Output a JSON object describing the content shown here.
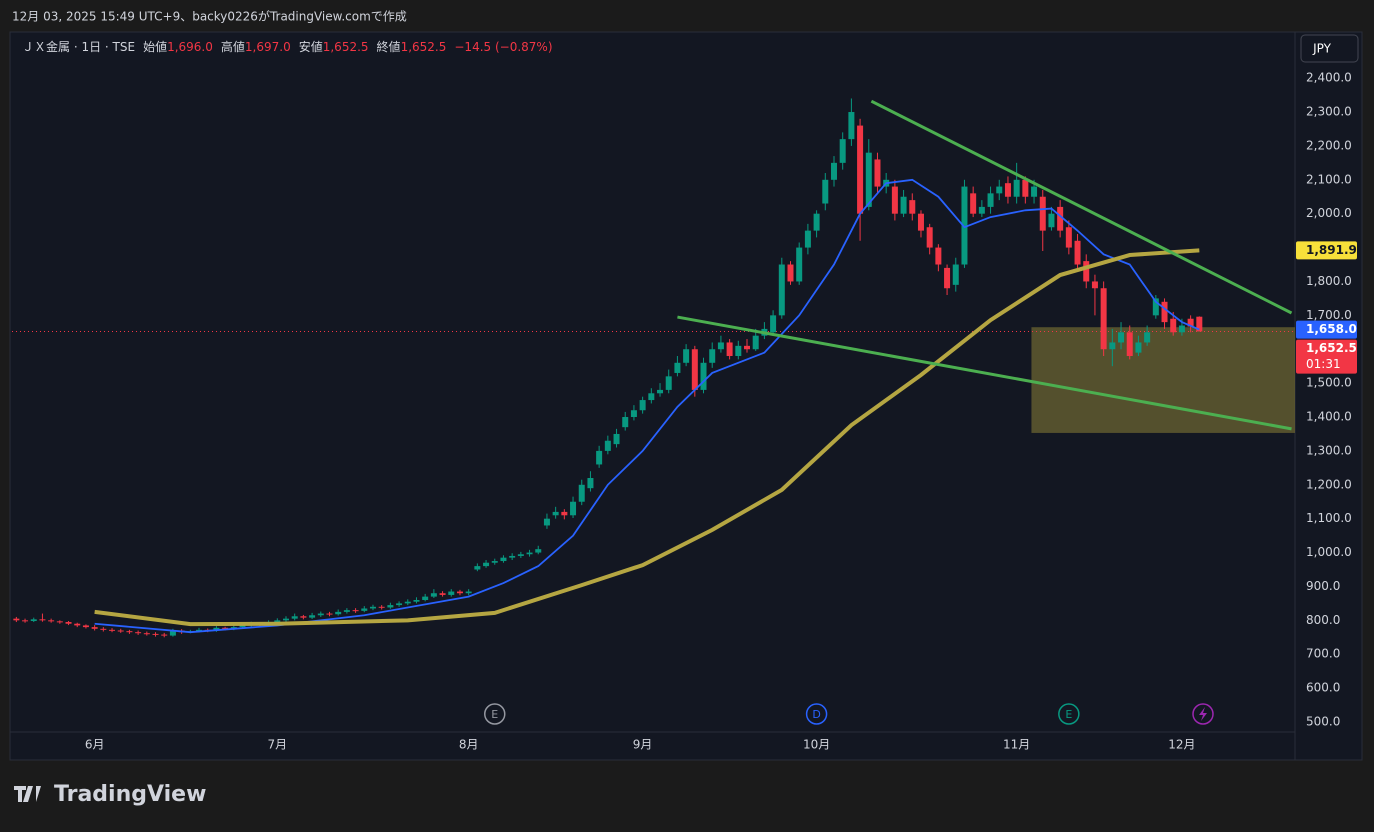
{
  "header": "12月 03, 2025 15:49 UTC+9、backy0226がTradingView.comで作成",
  "brand": "TradingView",
  "chart_data": {
    "type": "candlestick",
    "title": "ＪＸ金属 · 1日 · TSE",
    "legend_fields": [
      {
        "name": "始値",
        "value": 1696,
        "label": "1,696.0"
      },
      {
        "name": "高値",
        "value": 1697,
        "label": "1,697.0"
      },
      {
        "name": "安値",
        "value": 1652.5,
        "label": "1,652.5"
      },
      {
        "name": "終値",
        "value": 1652.5,
        "label": "1,652.5"
      }
    ],
    "change": {
      "value": -14.5,
      "label": "−14.5 (−0.87%)"
    },
    "currency": "JPY",
    "countdown": "01:31",
    "up_color": "#089981",
    "down_color": "#f23645",
    "open": [
      805,
      800,
      798,
      803,
      800,
      797,
      795,
      790,
      785,
      780,
      775,
      772,
      770,
      768,
      765,
      762,
      760,
      758,
      755,
      770,
      765,
      768,
      772,
      770,
      778,
      775,
      780,
      785,
      790,
      788,
      795,
      800,
      805,
      812,
      808,
      815,
      820,
      818,
      825,
      830,
      828,
      835,
      840,
      838,
      845,
      850,
      855,
      860,
      870,
      880,
      875,
      885,
      880,
      950,
      960,
      970,
      975,
      985,
      990,
      995,
      1000,
      1080,
      1110,
      1120,
      1110,
      1150,
      1190,
      1260,
      1300,
      1320,
      1370,
      1400,
      1420,
      1450,
      1470,
      1480,
      1530,
      1560,
      1600,
      1480,
      1560,
      1600,
      1620,
      1580,
      1610,
      1600,
      1640,
      1650,
      1700,
      1850,
      1800,
      1900,
      1950,
      2030,
      2100,
      2150,
      2220,
      2260,
      2020,
      2160,
      2080,
      2080,
      2000,
      2040,
      2000,
      1960,
      1900,
      1840,
      1790,
      1850,
      2060,
      2000,
      2020,
      2060,
      2090,
      2050,
      2100,
      2050,
      2050,
      1960,
      2020,
      1960,
      1920,
      1860,
      1800,
      1780,
      1600,
      1620,
      1650,
      1590,
      1620,
      1700,
      1740,
      1690,
      1650,
      1690,
      1696
    ],
    "high": [
      810,
      805,
      808,
      820,
      805,
      800,
      798,
      793,
      788,
      786,
      780,
      777,
      775,
      772,
      770,
      767,
      765,
      763,
      775,
      774,
      772,
      778,
      776,
      783,
      781,
      786,
      790,
      796,
      794,
      800,
      806,
      812,
      820,
      816,
      822,
      826,
      825,
      832,
      836,
      836,
      842,
      846,
      845,
      852,
      856,
      862,
      868,
      878,
      892,
      886,
      892,
      890,
      892,
      968,
      978,
      982,
      992,
      998,
      1002,
      1008,
      1020,
      1115,
      1135,
      1128,
      1165,
      1215,
      1240,
      1315,
      1345,
      1365,
      1415,
      1435,
      1460,
      1485,
      1500,
      1540,
      1580,
      1615,
      1610,
      1575,
      1620,
      1640,
      1630,
      1625,
      1630,
      1660,
      1680,
      1715,
      1870,
      1860,
      1915,
      1970,
      2010,
      2120,
      2170,
      2240,
      2340,
      2280,
      2220,
      2180,
      2120,
      2100,
      2070,
      2060,
      2010,
      1970,
      1910,
      1850,
      1870,
      2100,
      2080,
      2040,
      2080,
      2100,
      2110,
      2150,
      2110,
      2100,
      2070,
      2020,
      2040,
      1980,
      1940,
      1880,
      1820,
      1800,
      1660,
      1680,
      1670,
      1640,
      1670,
      1760,
      1750,
      1710,
      1690,
      1700,
      1697
    ],
    "low": [
      795,
      793,
      795,
      796,
      793,
      790,
      786,
      780,
      776,
      770,
      767,
      765,
      763,
      760,
      757,
      755,
      752,
      750,
      752,
      760,
      762,
      764,
      765,
      766,
      770,
      771,
      776,
      780,
      783,
      784,
      790,
      795,
      800,
      803,
      804,
      810,
      812,
      814,
      820,
      822,
      824,
      830,
      832,
      834,
      840,
      845,
      850,
      856,
      866,
      870,
      870,
      874,
      874,
      945,
      955,
      964,
      970,
      978,
      984,
      988,
      995,
      1070,
      1100,
      1098,
      1102,
      1140,
      1180,
      1250,
      1290,
      1310,
      1360,
      1390,
      1410,
      1440,
      1460,
      1470,
      1520,
      1550,
      1460,
      1470,
      1545,
      1590,
      1570,
      1570,
      1590,
      1595,
      1630,
      1640,
      1690,
      1790,
      1790,
      1880,
      1930,
      2010,
      2080,
      2130,
      2200,
      1920,
      2010,
      2060,
      2060,
      1980,
      1990,
      1980,
      1930,
      1880,
      1830,
      1760,
      1770,
      1840,
      1990,
      1990,
      2000,
      2040,
      2030,
      2030,
      2030,
      2030,
      1890,
      1950,
      1930,
      1880,
      1830,
      1780,
      1700,
      1580,
      1550,
      1600,
      1570,
      1580,
      1610,
      1690,
      1660,
      1640,
      1640,
      1650,
      1652.5
    ],
    "close": [
      800,
      798,
      803,
      800,
      797,
      795,
      790,
      785,
      780,
      775,
      772,
      770,
      768,
      765,
      762,
      760,
      758,
      755,
      770,
      765,
      768,
      772,
      770,
      778,
      775,
      780,
      785,
      790,
      788,
      795,
      800,
      805,
      812,
      808,
      815,
      820,
      818,
      825,
      830,
      828,
      835,
      840,
      838,
      845,
      850,
      855,
      860,
      870,
      880,
      875,
      885,
      880,
      885,
      960,
      970,
      975,
      985,
      990,
      995,
      1000,
      1010,
      1100,
      1120,
      1110,
      1150,
      1200,
      1220,
      1300,
      1330,
      1350,
      1400,
      1420,
      1450,
      1470,
      1480,
      1520,
      1560,
      1600,
      1480,
      1560,
      1600,
      1620,
      1580,
      1610,
      1600,
      1640,
      1660,
      1700,
      1850,
      1800,
      1900,
      1950,
      2000,
      2100,
      2150,
      2220,
      2300,
      2000,
      2180,
      2080,
      2100,
      2000,
      2050,
      2000,
      1950,
      1900,
      1850,
      1780,
      1850,
      2080,
      2000,
      2020,
      2060,
      2080,
      2050,
      2100,
      2050,
      2080,
      1950,
      2000,
      1950,
      1900,
      1850,
      1800,
      1780,
      1600,
      1620,
      1650,
      1580,
      1620,
      1650,
      1750,
      1680,
      1650,
      1670,
      1667,
      1652.5
    ],
    "series": [
      {
        "color": "#2962ff",
        "x": [
          9,
          20,
          30,
          40,
          52,
          56,
          60,
          64,
          68,
          72,
          76,
          80,
          86,
          90,
          94,
          97,
          100,
          103,
          106,
          109,
          112,
          116,
          119,
          122,
          125,
          128,
          131,
          134,
          136
        ],
        "values": [
          790,
          765,
          785,
          815,
          870,
          910,
          960,
          1050,
          1200,
          1300,
          1430,
          1530,
          1590,
          1700,
          1850,
          2000,
          2090,
          2100,
          2050,
          1960,
          1990,
          2010,
          2015,
          1950,
          1880,
          1850,
          1740,
          1680,
          1658
        ]
      },
      {
        "color": "#b5a642",
        "x": [
          9,
          20,
          30,
          45,
          55,
          65,
          72,
          80,
          88,
          96,
          104,
          112,
          120,
          128,
          136
        ],
        "values": [
          825,
          789,
          790,
          800,
          822,
          904,
          963,
          1067,
          1185,
          1376,
          1524,
          1686,
          1819,
          1878,
          1891.9
        ]
      }
    ],
    "trendlines": [
      {
        "color": "#4caf50",
        "x": [
          98.3,
          146.6
        ],
        "values": [
          2332,
          1707
        ]
      },
      {
        "color": "#4caf50",
        "x": [
          76,
          146.6
        ],
        "values": [
          1695,
          1365
        ]
      }
    ],
    "box": {
      "color": "#6b6431",
      "x": [
        116.7,
        147
      ],
      "values": [
        1665,
        1353
      ]
    },
    "price_tags": [
      {
        "value": 1891.9,
        "label": "1,891.9",
        "color": "#f7e03a",
        "text_color": "#131722"
      },
      {
        "value": 1658,
        "label": "1,658.0",
        "color": "#2962ff",
        "text_color": "#ffffff"
      },
      {
        "value": 1652.5,
        "label": "1,652.5",
        "color": "#f23645",
        "text_color": "#ffffff"
      }
    ],
    "events": [
      {
        "x": 55,
        "label": "E",
        "color": "#9598a1"
      },
      {
        "x": 92,
        "label": "D",
        "color": "#2962ff"
      },
      {
        "x": 121,
        "label": "E",
        "color": "#089981"
      }
    ],
    "xlim": [
      -0.5,
      147
    ],
    "ylim": [
      470.5,
      2424
    ],
    "xticks": [
      {
        "value": 9,
        "label": "6月"
      },
      {
        "value": 30,
        "label": "7月"
      },
      {
        "value": 52,
        "label": "8月"
      },
      {
        "value": 72,
        "label": "9月"
      },
      {
        "value": 92,
        "label": "10月"
      },
      {
        "value": 115,
        "label": "11月"
      },
      {
        "value": 134,
        "label": "12月"
      }
    ],
    "yticks": [
      {
        "value": 500,
        "label": "500.0"
      },
      {
        "value": 600,
        "label": "600.0"
      },
      {
        "value": 700,
        "label": "700.0"
      },
      {
        "value": 800,
        "label": "800.0"
      },
      {
        "value": 900,
        "label": "900.0"
      },
      {
        "value": 1000,
        "label": "1,000.0"
      },
      {
        "value": 1100,
        "label": "1,100.0"
      },
      {
        "value": 1200,
        "label": "1,200.0"
      },
      {
        "value": 1300,
        "label": "1,300.0"
      },
      {
        "value": 1400,
        "label": "1,400.0"
      },
      {
        "value": 1500,
        "label": "1,500.0"
      },
      {
        "value": 1600,
        "label": "1,600.0"
      },
      {
        "value": 1700,
        "label": "1,700.0"
      },
      {
        "value": 1800,
        "label": "1,800.0"
      },
      {
        "value": 1900,
        "label": "1,900.0"
      },
      {
        "value": 2000,
        "label": "2,000.0"
      },
      {
        "value": 2100,
        "label": "2,100.0"
      },
      {
        "value": 2200,
        "label": "2,200.0"
      },
      {
        "value": 2300,
        "label": "2,300.0"
      },
      {
        "value": 2400,
        "label": "2,400.0"
      }
    ],
    "grid": false
  }
}
